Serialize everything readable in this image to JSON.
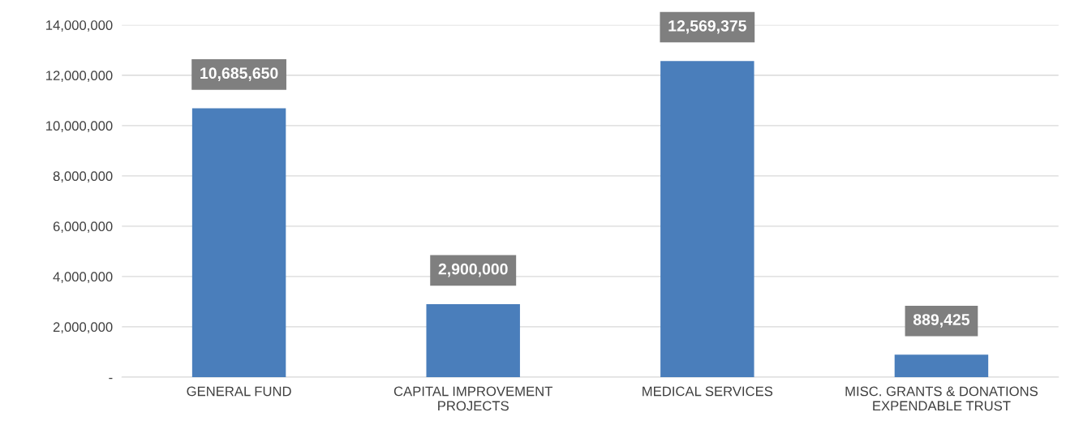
{
  "chart_data": {
    "type": "bar",
    "categories": [
      "GENERAL FUND",
      "CAPITAL IMPROVEMENT\nPROJECTS",
      "MEDICAL SERVICES",
      "MISC. GRANTS & DONATIONS\nEXPENDABLE TRUST"
    ],
    "values": [
      10685650,
      2900000,
      12569375,
      889425
    ],
    "color": "#4a7ebb",
    "ylim": [
      0,
      14000000
    ],
    "yticks": [
      {
        "value": 0,
        "label": "-"
      },
      {
        "value": 2000000,
        "label": "2,000,000"
      },
      {
        "value": 4000000,
        "label": "4,000,000"
      },
      {
        "value": 6000000,
        "label": "6,000,000"
      },
      {
        "value": 8000000,
        "label": "8,000,000"
      },
      {
        "value": 10000000,
        "label": "10,000,000"
      },
      {
        "value": 12000000,
        "label": "12,000,000"
      },
      {
        "value": 14000000,
        "label": "14,000,000"
      }
    ],
    "grid": "y",
    "value_labels": [
      "10,685,650",
      "2,900,000",
      "12,569,375",
      "889,425"
    ]
  }
}
